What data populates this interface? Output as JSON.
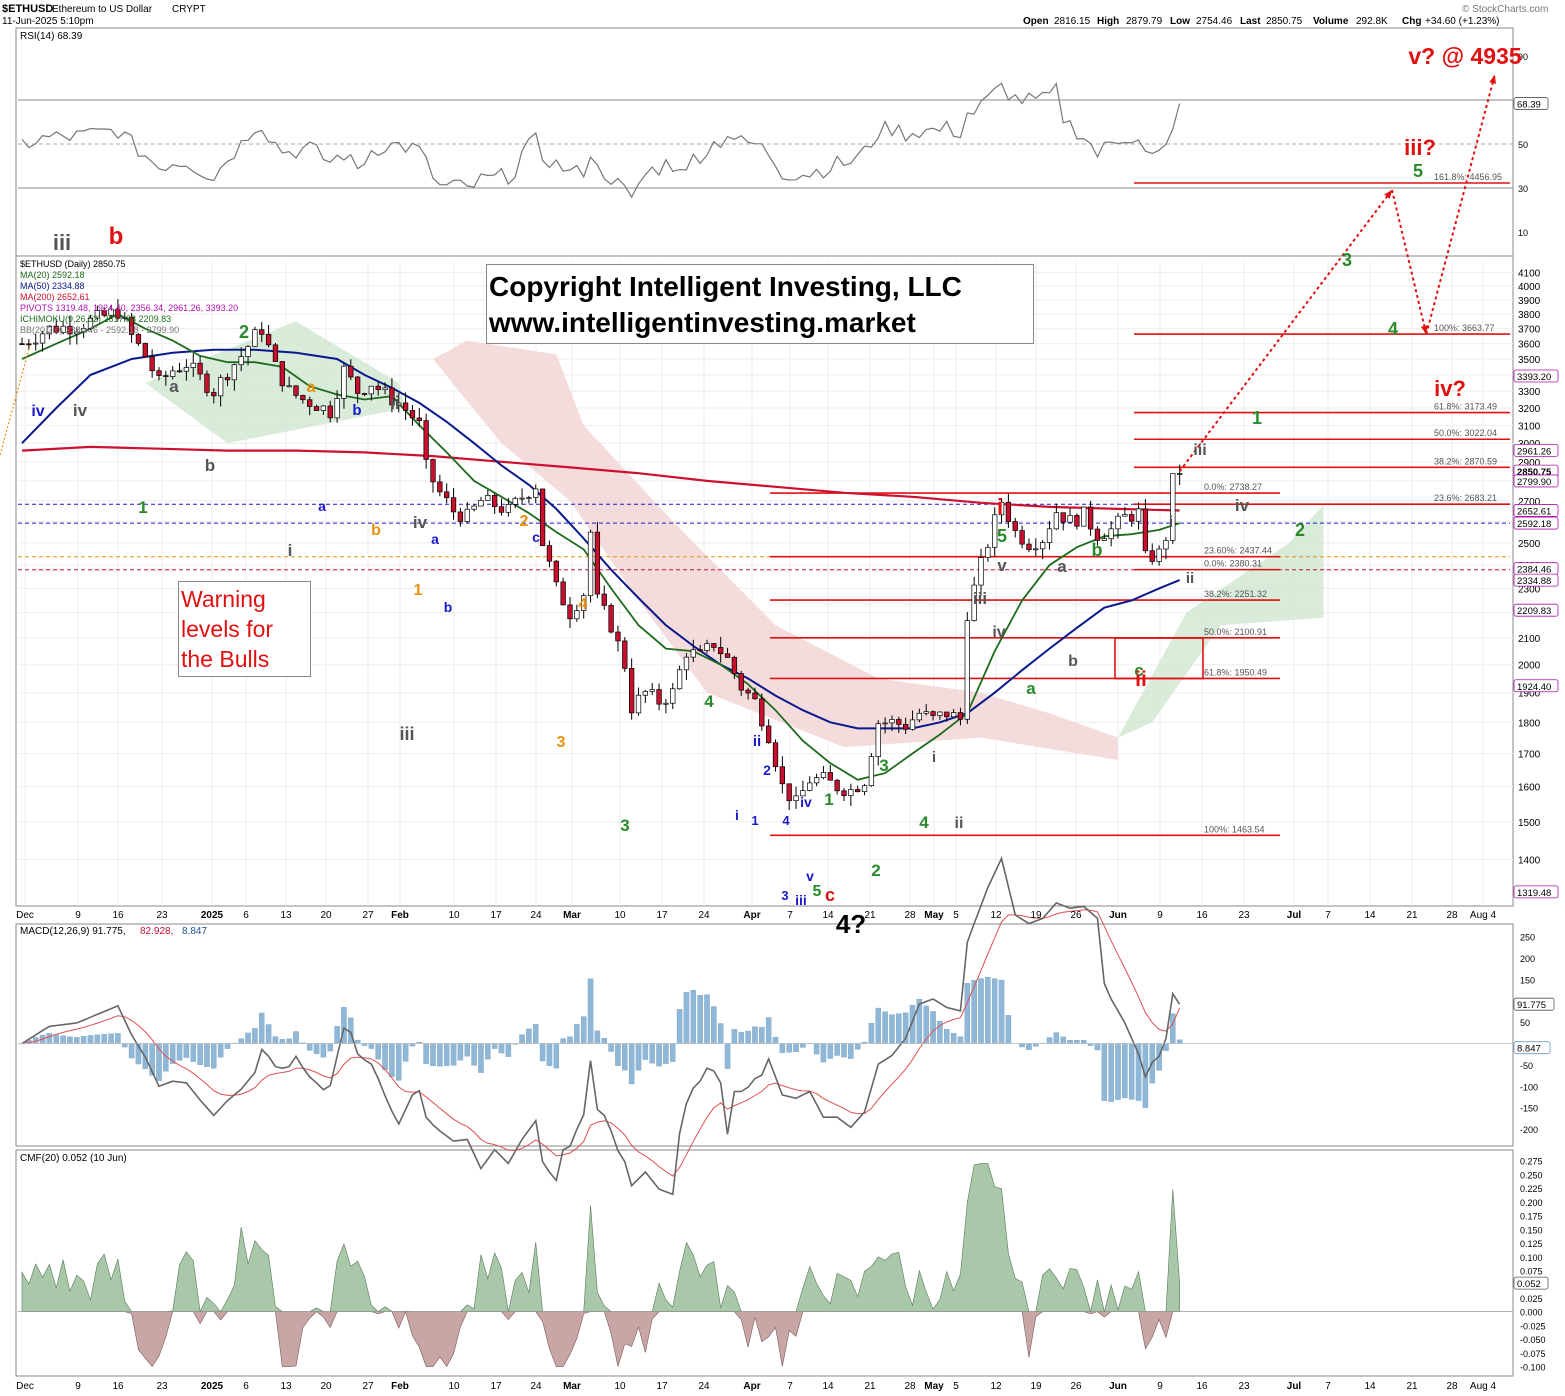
{
  "header": {
    "symbol": "$ETHUSD",
    "name": "Ethereum to US Dollar",
    "exchange": "CRYPT",
    "date": "11-Jun-2025 5:10pm",
    "open_label": "Open",
    "open": "2816.15",
    "high_label": "High",
    "high": "2879.79",
    "low_label": "Low",
    "low": "2754.46",
    "last_label": "Last",
    "last": "2850.75",
    "volume_label": "Volume",
    "volume": "292.8K",
    "chg_label": "Chg",
    "chg": "+34.60 (+1.23%)",
    "watermark": "© StockCharts.com"
  },
  "copyright": {
    "line1": "Copyright Intelligent Investing, LLC",
    "line2": "www.intelligentinvesting.market"
  },
  "warning": {
    "line1": "Warning",
    "line2": "levels for",
    "line3": "the Bulls"
  },
  "legend": {
    "price": "$ETHUSD (Daily) 2850.75",
    "ma20": "MA(20) 2592.18",
    "ma50": "MA(50) 2334.88",
    "ma200": "MA(200) 2652.61",
    "pivots": "PIVOTS 1319.48, 1924.40, 2356.34, 2961.26, 3393.20",
    "ichimoku": "ICHIMOKU(9,26,52) 2617.88 2209.83",
    "bb": "BB(20,2.0) 2384.46 - 2592.18 - 2799.90",
    "rsi": "RSI(14) 68.39",
    "macd_a": "MACD(12,26,9) 91.775,",
    "macd_b": "82.928,",
    "macd_c": "8.847",
    "cmf": "CMF(20) 0.052 (10 Jun)"
  },
  "colors": {
    "up": "#ffffff",
    "down": "#c8102e",
    "ma20": "#1e6b1e",
    "ma50": "#0a1a8c",
    "ma200": "#cc1030",
    "cloud_bull": "#cfe6cf",
    "cloud_bear": "#f3d6d6",
    "fib": "#e01010",
    "target": "#e01010",
    "cmf_pos": "#a9c7a9",
    "cmf_neg": "#c9a6a6",
    "hist": "#8fb8d8"
  },
  "chart_data": {
    "type": "candlestick",
    "title": "$ETHUSD (Daily) 2850.75",
    "x_ticks": [
      "Dec",
      "9",
      "16",
      "23",
      "2025",
      "6",
      "13",
      "20",
      "27",
      "Feb",
      "10",
      "17",
      "24",
      "Mar",
      "10",
      "17",
      "24",
      "Apr",
      "7",
      "14",
      "21",
      "28",
      "May",
      "5",
      "12",
      "19",
      "26",
      "Jun",
      "9",
      "16",
      "23",
      "Jul",
      "7",
      "14",
      "21",
      "28",
      "Aug 4"
    ],
    "price_axis": {
      "ylim": [
        1300,
        4150
      ],
      "ticks": [
        1400,
        1500,
        1600,
        1700,
        1800,
        1900,
        2000,
        2100,
        2200,
        2300,
        2400,
        2500,
        2600,
        2700,
        2800,
        2900,
        3000,
        3100,
        3200,
        3300,
        3400,
        3500,
        3600,
        3700,
        3800,
        3900,
        4000,
        4100
      ]
    },
    "close_path": [
      [
        0,
        3600
      ],
      [
        4,
        3700
      ],
      [
        8,
        3720
      ],
      [
        14,
        3820
      ],
      [
        16,
        3650
      ],
      [
        18,
        3520
      ],
      [
        20,
        3350
      ],
      [
        22,
        3430
      ],
      [
        24,
        3470
      ],
      [
        26,
        3380
      ],
      [
        28,
        3300
      ],
      [
        30,
        3420
      ],
      [
        32,
        3520
      ],
      [
        34,
        3650
      ],
      [
        35,
        3700
      ],
      [
        37,
        3450
      ],
      [
        39,
        3300
      ],
      [
        41,
        3250
      ],
      [
        43,
        3220
      ],
      [
        45,
        3180
      ],
      [
        47,
        3430
      ],
      [
        49,
        3300
      ],
      [
        51,
        3350
      ],
      [
        53,
        3280
      ],
      [
        55,
        3230
      ],
      [
        57,
        3150
      ],
      [
        58,
        3100
      ],
      [
        59,
        2870
      ],
      [
        60,
        2800
      ],
      [
        61,
        2740
      ],
      [
        63,
        2650
      ],
      [
        65,
        2620
      ],
      [
        67,
        2700
      ],
      [
        69,
        2680
      ],
      [
        71,
        2650
      ],
      [
        73,
        2720
      ],
      [
        75,
        2780
      ],
      [
        76,
        2500
      ],
      [
        78,
        2300
      ],
      [
        80,
        2200
      ],
      [
        82,
        2280
      ],
      [
        83,
        2550
      ],
      [
        84,
        2250
      ],
      [
        86,
        2150
      ],
      [
        88,
        2000
      ],
      [
        89,
        1850
      ],
      [
        91,
        1900
      ],
      [
        93,
        1870
      ],
      [
        95,
        1900
      ],
      [
        97,
        2050
      ],
      [
        99,
        2030
      ],
      [
        101,
        2080
      ],
      [
        103,
        2020
      ],
      [
        105,
        1920
      ],
      [
        107,
        1870
      ],
      [
        109,
        1760
      ],
      [
        111,
        1600
      ],
      [
        113,
        1550
      ],
      [
        115,
        1620
      ],
      [
        117,
        1620
      ],
      [
        119,
        1600
      ],
      [
        121,
        1590
      ],
      [
        123,
        1620
      ],
      [
        125,
        1800
      ],
      [
        127,
        1800
      ],
      [
        129,
        1790
      ],
      [
        131,
        1830
      ],
      [
        133,
        1810
      ],
      [
        135,
        1830
      ],
      [
        137,
        1810
      ],
      [
        138,
        2200
      ],
      [
        140,
        2400
      ],
      [
        142,
        2600
      ],
      [
        143,
        2700
      ],
      [
        145,
        2550
      ],
      [
        147,
        2500
      ],
      [
        149,
        2520
      ],
      [
        151,
        2650
      ],
      [
        153,
        2600
      ],
      [
        155,
        2630
      ],
      [
        157,
        2540
      ],
      [
        159,
        2560
      ],
      [
        161,
        2620
      ],
      [
        163,
        2640
      ],
      [
        164,
        2430
      ],
      [
        166,
        2450
      ],
      [
        167,
        2530
      ],
      [
        168,
        2800
      ],
      [
        169,
        2850.75
      ]
    ],
    "ma20_path": [
      [
        0,
        3500
      ],
      [
        5,
        3600
      ],
      [
        10,
        3700
      ],
      [
        14,
        3800
      ],
      [
        18,
        3700
      ],
      [
        22,
        3620
      ],
      [
        26,
        3520
      ],
      [
        30,
        3480
      ],
      [
        34,
        3480
      ],
      [
        38,
        3450
      ],
      [
        42,
        3330
      ],
      [
        46,
        3280
      ],
      [
        50,
        3250
      ],
      [
        54,
        3270
      ],
      [
        58,
        3100
      ],
      [
        62,
        2950
      ],
      [
        66,
        2800
      ],
      [
        70,
        2720
      ],
      [
        74,
        2640
      ],
      [
        78,
        2550
      ],
      [
        82,
        2470
      ],
      [
        86,
        2300
      ],
      [
        90,
        2150
      ],
      [
        94,
        2060
      ],
      [
        98,
        2050
      ],
      [
        102,
        2000
      ],
      [
        106,
        1930
      ],
      [
        110,
        1840
      ],
      [
        114,
        1740
      ],
      [
        118,
        1670
      ],
      [
        122,
        1620
      ],
      [
        126,
        1640
      ],
      [
        130,
        1700
      ],
      [
        134,
        1760
      ],
      [
        138,
        1830
      ],
      [
        142,
        2050
      ],
      [
        146,
        2250
      ],
      [
        150,
        2400
      ],
      [
        154,
        2480
      ],
      [
        158,
        2530
      ],
      [
        162,
        2540
      ],
      [
        166,
        2560
      ],
      [
        169,
        2592
      ]
    ],
    "ma50_path": [
      [
        0,
        3000
      ],
      [
        5,
        3200
      ],
      [
        10,
        3400
      ],
      [
        16,
        3500
      ],
      [
        22,
        3540
      ],
      [
        28,
        3560
      ],
      [
        34,
        3560
      ],
      [
        40,
        3540
      ],
      [
        46,
        3500
      ],
      [
        50,
        3400
      ],
      [
        54,
        3320
      ],
      [
        58,
        3230
      ],
      [
        62,
        3120
      ],
      [
        66,
        3000
      ],
      [
        70,
        2880
      ],
      [
        74,
        2780
      ],
      [
        78,
        2660
      ],
      [
        82,
        2520
      ],
      [
        86,
        2380
      ],
      [
        90,
        2260
      ],
      [
        94,
        2150
      ],
      [
        98,
        2070
      ],
      [
        102,
        2000
      ],
      [
        106,
        1950
      ],
      [
        110,
        1890
      ],
      [
        114,
        1840
      ],
      [
        118,
        1800
      ],
      [
        122,
        1780
      ],
      [
        126,
        1780
      ],
      [
        130,
        1780
      ],
      [
        134,
        1800
      ],
      [
        138,
        1830
      ],
      [
        142,
        1900
      ],
      [
        146,
        1980
      ],
      [
        150,
        2060
      ],
      [
        154,
        2140
      ],
      [
        158,
        2220
      ],
      [
        162,
        2250
      ],
      [
        166,
        2300
      ],
      [
        169,
        2335
      ]
    ],
    "ma200_path": [
      [
        0,
        2960
      ],
      [
        10,
        2980
      ],
      [
        20,
        2970
      ],
      [
        30,
        2960
      ],
      [
        40,
        2960
      ],
      [
        50,
        2950
      ],
      [
        60,
        2930
      ],
      [
        70,
        2900
      ],
      [
        80,
        2870
      ],
      [
        90,
        2840
      ],
      [
        100,
        2800
      ],
      [
        110,
        2770
      ],
      [
        120,
        2740
      ],
      [
        130,
        2720
      ],
      [
        140,
        2690
      ],
      [
        150,
        2670
      ],
      [
        160,
        2660
      ],
      [
        169,
        2652.61
      ]
    ],
    "projection": [
      [
        169,
        2850
      ],
      [
        200,
        4456
      ],
      [
        205,
        3663
      ],
      [
        215,
        4935
      ]
    ],
    "fib_levels": [
      {
        "label": "100%: 1463.54",
        "value": 1463.54
      },
      {
        "label": "61.8%: 1950.49",
        "value": 1950.49
      },
      {
        "label": "50.0%: 2100.91",
        "value": 2100.91
      },
      {
        "label": "38.2%: 2251.32",
        "value": 2251.32
      },
      {
        "label": "0.0%: 2380.31",
        "value": 2380.31
      },
      {
        "label": "23.60%: 2437.44",
        "value": 2437.44
      },
      {
        "label": "23.6%: 2683.21",
        "value": 2683.21
      },
      {
        "label": "0.0%: 2738.27",
        "value": 2738.27
      },
      {
        "label": "38.2%: 2870.59",
        "value": 2870.59
      },
      {
        "label": "50.0%: 3022.04",
        "value": 3022.04
      },
      {
        "label": "61.8%: 3173.49",
        "value": 3173.49
      },
      {
        "label": "100%: 3663.77",
        "value": 3663.77
      },
      {
        "label": "161.8%: 4456.95",
        "value": 4456.95
      }
    ],
    "right_axis_tags": [
      "3393.20",
      "2961.26",
      "2850.75",
      "2799.90",
      "2652.61",
      "2592.18",
      "2384.46",
      "2334.88",
      "2209.83",
      "1924.40",
      "1319.48"
    ],
    "rsi": {
      "ylim": [
        0,
        100
      ],
      "ticks": [
        "90",
        "70",
        "50",
        "30",
        "10"
      ],
      "last": "68.39"
    },
    "macd": {
      "ticks": [
        "250",
        "200",
        "150",
        "100",
        "50",
        "-50",
        "-100",
        "-150",
        "-200"
      ],
      "last": "91.775",
      "hist_last": "8.847"
    },
    "cmf": {
      "ticks": [
        "0.275",
        "0.250",
        "0.225",
        "0.200",
        "0.175",
        "0.150",
        "0.125",
        "0.100",
        "0.075",
        "0.050",
        "0.025",
        "0.000",
        "-0.025",
        "-0.050",
        "-0.075",
        "-0.100"
      ],
      "last": "0.052"
    },
    "wave_labels": [
      {
        "text": "iii",
        "color": "#555555"
      },
      {
        "text": "b",
        "color": "#e01010"
      },
      {
        "text": "iv",
        "color": "#1a1acc"
      },
      {
        "text": "iv",
        "color": "#555555"
      },
      {
        "text": "1",
        "color": "#2a8a2a"
      },
      {
        "text": "a",
        "color": "#555555"
      },
      {
        "text": "b",
        "color": "#555555"
      },
      {
        "text": "2",
        "color": "#2a8a2a"
      },
      {
        "text": "i",
        "color": "#555555"
      },
      {
        "text": "a",
        "color": "#1a1acc"
      },
      {
        "text": "a",
        "color": "#e89010"
      },
      {
        "text": "b",
        "color": "#1a1acc"
      },
      {
        "text": "b",
        "color": "#e89010"
      },
      {
        "text": "ii",
        "color": "#555555"
      },
      {
        "text": "iv",
        "color": "#555555"
      },
      {
        "text": "a",
        "color": "#1a1acc"
      },
      {
        "text": "1",
        "color": "#e89010"
      },
      {
        "text": "b",
        "color": "#1a1acc"
      },
      {
        "text": "iii",
        "color": "#555555"
      },
      {
        "text": "2",
        "color": "#e89010"
      },
      {
        "text": "c",
        "color": "#1a1acc"
      },
      {
        "text": "4",
        "color": "#e89010"
      },
      {
        "text": "3",
        "color": "#e89010"
      },
      {
        "text": "3",
        "color": "#2a8a2a"
      },
      {
        "text": "4",
        "color": "#2a8a2a"
      },
      {
        "text": "ii",
        "color": "#1a1acc"
      },
      {
        "text": "2",
        "color": "#1a1acc"
      },
      {
        "text": "i",
        "color": "#1a1acc"
      },
      {
        "text": "1",
        "color": "#1a1acc"
      },
      {
        "text": "4",
        "color": "#1a1acc"
      },
      {
        "text": "iv",
        "color": "#1a1acc"
      },
      {
        "text": "1",
        "color": "#2a8a2a"
      },
      {
        "text": "v",
        "color": "#1a1acc"
      },
      {
        "text": "3",
        "color": "#1a1acc"
      },
      {
        "text": "iii",
        "color": "#1a1acc"
      },
      {
        "text": "5",
        "color": "#2a8a2a"
      },
      {
        "text": "c",
        "color": "#e01010"
      },
      {
        "text": "4?",
        "color": "#000000"
      },
      {
        "text": "2",
        "color": "#2a8a2a"
      },
      {
        "text": "3",
        "color": "#2a8a2a"
      },
      {
        "text": "i",
        "color": "#555555"
      },
      {
        "text": "4",
        "color": "#2a8a2a"
      },
      {
        "text": "ii",
        "color": "#555555"
      },
      {
        "text": "i",
        "color": "#e01010"
      },
      {
        "text": "5",
        "color": "#2a8a2a"
      },
      {
        "text": "v",
        "color": "#555555"
      },
      {
        "text": "iii",
        "color": "#555555"
      },
      {
        "text": "iv",
        "color": "#555555"
      },
      {
        "text": "a",
        "color": "#555555"
      },
      {
        "text": "a",
        "color": "#2a8a2a"
      },
      {
        "text": "b",
        "color": "#555555"
      },
      {
        "text": "b",
        "color": "#2a8a2a"
      },
      {
        "text": "c",
        "color": "#2a8a2a"
      },
      {
        "text": "ii",
        "color": "#e01010"
      },
      {
        "text": "i",
        "color": "#555555"
      },
      {
        "text": "ii",
        "color": "#555555"
      },
      {
        "text": "iv",
        "color": "#555555"
      },
      {
        "text": "iii",
        "color": "#555555"
      },
      {
        "text": "1",
        "color": "#2a8a2a"
      },
      {
        "text": "2",
        "color": "#2a8a2a"
      },
      {
        "text": "3",
        "color": "#2a8a2a"
      },
      {
        "text": "4",
        "color": "#2a8a2a"
      },
      {
        "text": "5",
        "color": "#2a8a2a"
      },
      {
        "text": "iii?",
        "color": "#e01010"
      },
      {
        "text": "iv?",
        "color": "#e01010"
      },
      {
        "text": "v? @ 4935",
        "color": "#e01010"
      }
    ]
  }
}
